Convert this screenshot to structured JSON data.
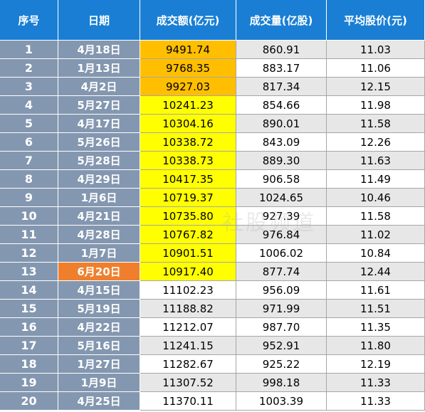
{
  "headers": [
    "序号",
    "日期",
    "成交额(亿元)",
    "成交量(亿股)",
    "平均股价(元)"
  ],
  "colors": {
    "header": "#1a7fd4",
    "index_cell": "#8497b0",
    "highlight_date": "#f07f2d",
    "amount_orange": "#ffbf00",
    "amount_yellow": "#ffff00",
    "stripe": "#e7e7e7"
  },
  "rows": [
    {
      "idx": "1",
      "date": "4月18日",
      "amount": "9491.74",
      "volume": "860.91",
      "avg": "11.03",
      "amount_color": "orange",
      "date_hl": false
    },
    {
      "idx": "2",
      "date": "1月13日",
      "amount": "9768.35",
      "volume": "883.17",
      "avg": "11.06",
      "amount_color": "orange",
      "date_hl": false
    },
    {
      "idx": "3",
      "date": "4月2日",
      "amount": "9927.03",
      "volume": "817.34",
      "avg": "12.15",
      "amount_color": "orange",
      "date_hl": false
    },
    {
      "idx": "4",
      "date": "5月27日",
      "amount": "10241.23",
      "volume": "854.66",
      "avg": "11.98",
      "amount_color": "yellow",
      "date_hl": false
    },
    {
      "idx": "5",
      "date": "4月17日",
      "amount": "10304.16",
      "volume": "890.01",
      "avg": "11.58",
      "amount_color": "yellow",
      "date_hl": false
    },
    {
      "idx": "6",
      "date": "5月26日",
      "amount": "10338.72",
      "volume": "843.09",
      "avg": "12.26",
      "amount_color": "yellow",
      "date_hl": false
    },
    {
      "idx": "7",
      "date": "5月28日",
      "amount": "10338.73",
      "volume": "889.30",
      "avg": "11.63",
      "amount_color": "yellow",
      "date_hl": false
    },
    {
      "idx": "8",
      "date": "4月29日",
      "amount": "10417.35",
      "volume": "906.58",
      "avg": "11.49",
      "amount_color": "yellow",
      "date_hl": false
    },
    {
      "idx": "9",
      "date": "1月6日",
      "amount": "10719.37",
      "volume": "1024.65",
      "avg": "10.46",
      "amount_color": "yellow",
      "date_hl": false
    },
    {
      "idx": "10",
      "date": "4月21日",
      "amount": "10735.80",
      "volume": "927.39",
      "avg": "11.58",
      "amount_color": "yellow",
      "date_hl": false
    },
    {
      "idx": "11",
      "date": "4月28日",
      "amount": "10767.82",
      "volume": "976.84",
      "avg": "11.02",
      "amount_color": "yellow",
      "date_hl": false
    },
    {
      "idx": "12",
      "date": "1月7日",
      "amount": "10901.51",
      "volume": "1006.02",
      "avg": "10.84",
      "amount_color": "yellow",
      "date_hl": false
    },
    {
      "idx": "13",
      "date": "6月20日",
      "amount": "10917.40",
      "volume": "877.74",
      "avg": "12.44",
      "amount_color": "yellow",
      "date_hl": true
    },
    {
      "idx": "14",
      "date": "4月15日",
      "amount": "11102.23",
      "volume": "956.09",
      "avg": "11.61",
      "amount_color": "none",
      "date_hl": false
    },
    {
      "idx": "15",
      "date": "5月19日",
      "amount": "11188.82",
      "volume": "971.99",
      "avg": "11.51",
      "amount_color": "none",
      "date_hl": false
    },
    {
      "idx": "16",
      "date": "4月22日",
      "amount": "11212.07",
      "volume": "987.70",
      "avg": "11.35",
      "amount_color": "none",
      "date_hl": false
    },
    {
      "idx": "17",
      "date": "5月16日",
      "amount": "11241.15",
      "volume": "952.91",
      "avg": "11.80",
      "amount_color": "none",
      "date_hl": false
    },
    {
      "idx": "18",
      "date": "1月27日",
      "amount": "11282.67",
      "volume": "925.22",
      "avg": "12.19",
      "amount_color": "none",
      "date_hl": false
    },
    {
      "idx": "19",
      "date": "1月9日",
      "amount": "11307.52",
      "volume": "998.18",
      "avg": "11.33",
      "amount_color": "none",
      "date_hl": false
    },
    {
      "idx": "20",
      "date": "4月25日",
      "amount": "11370.11",
      "volume": "1003.39",
      "avg": "11.33",
      "amount_color": "none",
      "date_hl": false
    }
  ],
  "watermark": "社股频道"
}
